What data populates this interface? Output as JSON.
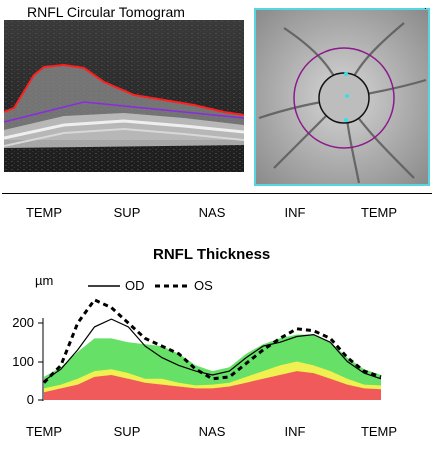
{
  "tomogram": {
    "title": "RNFL Circular Tomogram"
  },
  "fundus": {
    "stray_mark": "."
  },
  "chart_data": {
    "type": "area",
    "title": "RNFL Thickness",
    "ylabel": "µm",
    "categories": [
      "TEMP",
      "SUP",
      "NAS",
      "INF",
      "TEMP"
    ],
    "top_categories": [
      "TEMP",
      "SUP",
      "NAS",
      "INF",
      "TEMP"
    ],
    "yticks": [
      "0",
      "100",
      "200"
    ],
    "ylim": [
      0,
      270
    ],
    "x": [
      0,
      0.05,
      0.1,
      0.15,
      0.2,
      0.25,
      0.3,
      0.35,
      0.4,
      0.45,
      0.5,
      0.55,
      0.6,
      0.65,
      0.7,
      0.75,
      0.8,
      0.85,
      0.9,
      0.95,
      1.0
    ],
    "legend": {
      "od": "OD",
      "os": "OS"
    },
    "series": [
      {
        "name": "OD",
        "style": "solid",
        "values": [
          50,
          80,
          130,
          190,
          210,
          190,
          140,
          110,
          90,
          75,
          65,
          75,
          110,
          140,
          150,
          165,
          170,
          150,
          100,
          70,
          55
        ]
      },
      {
        "name": "OS",
        "style": "dashed",
        "values": [
          45,
          90,
          200,
          260,
          240,
          200,
          160,
          140,
          120,
          80,
          55,
          60,
          95,
          130,
          160,
          185,
          180,
          160,
          110,
          75,
          60
        ]
      }
    ],
    "bands": [
      {
        "upper": [
          60,
          85,
          125,
          160,
          160,
          150,
          145,
          140,
          120,
          90,
          75,
          85,
          120,
          145,
          160,
          170,
          170,
          150,
          110,
          80,
          65
        ],
        "color": "#66e066"
      },
      {
        "upper": [
          30,
          40,
          55,
          75,
          80,
          70,
          55,
          55,
          45,
          38,
          40,
          45,
          60,
          75,
          90,
          100,
          90,
          75,
          55,
          40,
          38
        ],
        "color": "#f0f050"
      },
      {
        "upper": [
          20,
          30,
          40,
          60,
          65,
          55,
          45,
          40,
          35,
          30,
          30,
          35,
          45,
          55,
          65,
          75,
          70,
          55,
          40,
          30,
          28
        ],
        "color": "#f05a5a"
      }
    ]
  }
}
